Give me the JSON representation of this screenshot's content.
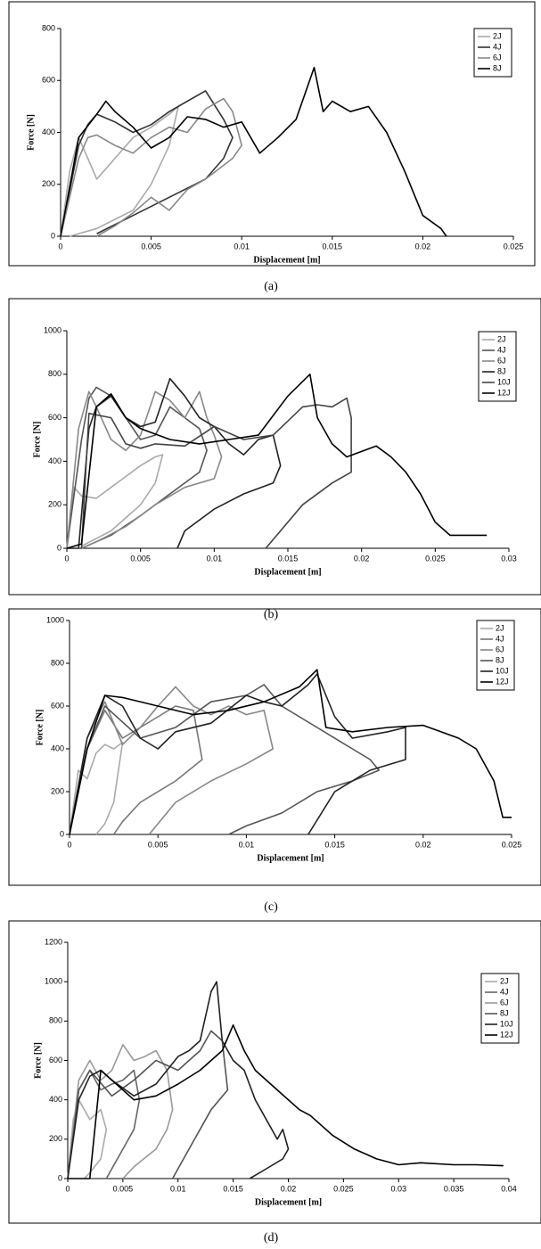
{
  "chart_data": [
    {
      "type": "line",
      "caption": "(a)",
      "x_label": "Displacement [m]",
      "y_label": "Force [N]",
      "xlim": [
        0,
        0.025
      ],
      "ylim": [
        0,
        800
      ],
      "xticks": [
        0,
        0.005,
        0.01,
        0.015,
        0.02,
        0.025
      ],
      "yticks": [
        0,
        200,
        400,
        600,
        800
      ],
      "series": [
        {
          "name": "2J",
          "color": "#aaaaaa",
          "x": [
            0,
            0.0005,
            0.001,
            0.0015,
            0.002,
            0.003,
            0.004,
            0.005,
            0.006,
            0.0065,
            0.006,
            0.005,
            0.004,
            0.002,
            0.0005
          ],
          "values": [
            0,
            250,
            380,
            300,
            220,
            300,
            380,
            420,
            470,
            500,
            350,
            200,
            100,
            30,
            0
          ]
        },
        {
          "name": "4J",
          "color": "#333333",
          "x": [
            0,
            0.001,
            0.0015,
            0.002,
            0.003,
            0.004,
            0.005,
            0.006,
            0.007,
            0.008,
            0.009,
            0.0095,
            0.009,
            0.008,
            0.006,
            0.004,
            0.002
          ],
          "values": [
            0,
            350,
            430,
            470,
            440,
            400,
            430,
            480,
            520,
            560,
            450,
            380,
            300,
            220,
            150,
            80,
            10
          ]
        },
        {
          "name": "6J",
          "color": "#888888",
          "x": [
            0,
            0.001,
            0.0015,
            0.002,
            0.003,
            0.004,
            0.005,
            0.006,
            0.007,
            0.008,
            0.009,
            0.0095,
            0.01,
            0.0095,
            0.008,
            0.007,
            0.006,
            0.005,
            0.004,
            0.003,
            0.002
          ],
          "values": [
            0,
            300,
            380,
            390,
            350,
            320,
            380,
            420,
            400,
            490,
            530,
            480,
            350,
            300,
            220,
            180,
            100,
            150,
            90,
            40,
            0
          ]
        },
        {
          "name": "8J",
          "color": "#000000",
          "x": [
            0,
            0.001,
            0.002,
            0.0025,
            0.003,
            0.004,
            0.005,
            0.006,
            0.007,
            0.008,
            0.009,
            0.01,
            0.011,
            0.012,
            0.013,
            0.014,
            0.0145,
            0.015,
            0.016,
            0.017,
            0.018,
            0.019,
            0.02,
            0.021,
            0.0213
          ],
          "values": [
            0,
            380,
            470,
            520,
            480,
            420,
            340,
            380,
            460,
            450,
            420,
            440,
            320,
            380,
            450,
            650,
            480,
            520,
            480,
            500,
            400,
            250,
            80,
            30,
            0
          ]
        }
      ]
    },
    {
      "type": "line",
      "caption": "(b)",
      "x_label": "Displacement [m]",
      "y_label": "Force [N]",
      "xlim": [
        0,
        0.03
      ],
      "ylim": [
        0,
        1000
      ],
      "xticks": [
        0,
        0.005,
        0.01,
        0.015,
        0.02,
        0.025,
        0.03
      ],
      "yticks": [
        0,
        200,
        400,
        600,
        800,
        1000
      ],
      "series": [
        {
          "name": "2J",
          "color": "#aaaaaa",
          "x": [
            0,
            0.0005,
            0.001,
            0.002,
            0.003,
            0.004,
            0.005,
            0.006,
            0.0065,
            0.006,
            0.005,
            0.003,
            0.001
          ],
          "values": [
            0,
            280,
            240,
            230,
            280,
            330,
            380,
            420,
            430,
            300,
            200,
            80,
            10
          ]
        },
        {
          "name": "4J",
          "color": "#555555",
          "x": [
            0,
            0.001,
            0.0015,
            0.002,
            0.003,
            0.004,
            0.005,
            0.006,
            0.007,
            0.008,
            0.009,
            0.0095,
            0.009,
            0.007,
            0.005,
            0.003,
            0.001
          ],
          "values": [
            0,
            500,
            690,
            740,
            700,
            600,
            500,
            520,
            650,
            600,
            550,
            450,
            350,
            250,
            150,
            60,
            0
          ]
        },
        {
          "name": "6J",
          "color": "#888888",
          "x": [
            0,
            0.0008,
            0.0015,
            0.002,
            0.003,
            0.004,
            0.005,
            0.006,
            0.007,
            0.008,
            0.009,
            0.0095,
            0.01,
            0.0105,
            0.01,
            0.008,
            0.006,
            0.004,
            0.002,
            0.001
          ],
          "values": [
            0,
            550,
            720,
            650,
            500,
            450,
            520,
            720,
            680,
            600,
            720,
            600,
            520,
            420,
            320,
            280,
            200,
            100,
            30,
            0
          ]
        },
        {
          "name": "8J",
          "color": "#222222",
          "x": [
            0,
            0.0008,
            0.0015,
            0.002,
            0.003,
            0.004,
            0.005,
            0.006,
            0.007,
            0.008,
            0.009,
            0.01,
            0.011,
            0.012,
            0.013,
            0.014,
            0.0145,
            0.014,
            0.012,
            0.01,
            0.008,
            0.0075
          ],
          "values": [
            0,
            0,
            550,
            650,
            700,
            600,
            560,
            580,
            780,
            700,
            600,
            560,
            480,
            430,
            500,
            520,
            380,
            300,
            250,
            180,
            80,
            0
          ]
        },
        {
          "name": "10J",
          "color": "#444444",
          "x": [
            0,
            0.001,
            0.0015,
            0.003,
            0.004,
            0.005,
            0.006,
            0.008,
            0.01,
            0.012,
            0.014,
            0.016,
            0.017,
            0.018,
            0.019,
            0.0193,
            0.0193,
            0.018,
            0.016,
            0.0135
          ],
          "values": [
            0,
            0,
            620,
            600,
            480,
            460,
            480,
            470,
            560,
            500,
            520,
            650,
            660,
            650,
            690,
            600,
            350,
            300,
            200,
            0
          ]
        },
        {
          "name": "12J",
          "color": "#000000",
          "x": [
            0,
            0.001,
            0.002,
            0.003,
            0.004,
            0.005,
            0.007,
            0.009,
            0.011,
            0.013,
            0.015,
            0.0165,
            0.017,
            0.018,
            0.019,
            0.021,
            0.022,
            0.023,
            0.024,
            0.025,
            0.026,
            0.0285
          ],
          "values": [
            0,
            20,
            650,
            710,
            600,
            550,
            500,
            480,
            500,
            520,
            700,
            800,
            600,
            480,
            420,
            470,
            420,
            350,
            250,
            120,
            60,
            60
          ]
        }
      ]
    },
    {
      "type": "line",
      "caption": "(c)",
      "x_label": "Displacement [m]",
      "y_label": "Force [N]",
      "xlim": [
        0,
        0.025
      ],
      "ylim": [
        0,
        1000
      ],
      "xticks": [
        0,
        0.005,
        0.01,
        0.015,
        0.02,
        0.025
      ],
      "yticks": [
        0,
        200,
        400,
        600,
        800,
        1000
      ],
      "series": [
        {
          "name": "2J",
          "color": "#aaaaaa",
          "x": [
            0,
            0.0005,
            0.001,
            0.0015,
            0.002,
            0.0025,
            0.003,
            0.0025,
            0.002,
            0.0015
          ],
          "values": [
            0,
            300,
            260,
            380,
            420,
            400,
            430,
            150,
            50,
            0
          ]
        },
        {
          "name": "4J",
          "color": "#777777",
          "x": [
            0,
            0.001,
            0.002,
            0.003,
            0.004,
            0.005,
            0.006,
            0.007,
            0.0075,
            0.006,
            0.004,
            0.003,
            0.0025
          ],
          "values": [
            0,
            400,
            580,
            450,
            500,
            550,
            600,
            580,
            350,
            250,
            150,
            60,
            0
          ]
        },
        {
          "name": "6J",
          "color": "#888888",
          "x": [
            0,
            0.001,
            0.002,
            0.003,
            0.004,
            0.005,
            0.006,
            0.007,
            0.008,
            0.009,
            0.01,
            0.011,
            0.0115,
            0.01,
            0.008,
            0.006,
            0.005,
            0.0045
          ],
          "values": [
            0,
            450,
            620,
            420,
            500,
            600,
            690,
            600,
            560,
            600,
            560,
            580,
            400,
            330,
            250,
            150,
            50,
            0
          ]
        },
        {
          "name": "8J",
          "color": "#555555",
          "x": [
            0,
            0.001,
            0.002,
            0.004,
            0.006,
            0.008,
            0.01,
            0.011,
            0.012,
            0.014,
            0.016,
            0.017,
            0.0175,
            0.016,
            0.014,
            0.012,
            0.01,
            0.009
          ],
          "values": [
            0,
            400,
            600,
            450,
            500,
            620,
            650,
            700,
            600,
            500,
            400,
            350,
            300,
            250,
            200,
            100,
            40,
            0
          ]
        },
        {
          "name": "10J",
          "color": "#222222",
          "x": [
            0,
            0.001,
            0.002,
            0.003,
            0.004,
            0.005,
            0.006,
            0.008,
            0.01,
            0.011,
            0.012,
            0.0135,
            0.014,
            0.015,
            0.016,
            0.018,
            0.019,
            0.019,
            0.017,
            0.015,
            0.0135
          ],
          "values": [
            0,
            450,
            650,
            600,
            450,
            400,
            480,
            520,
            650,
            620,
            600,
            700,
            750,
            550,
            450,
            480,
            500,
            350,
            300,
            200,
            0
          ]
        },
        {
          "name": "12J",
          "color": "#000000",
          "x": [
            0,
            0.001,
            0.002,
            0.003,
            0.005,
            0.007,
            0.009,
            0.011,
            0.013,
            0.014,
            0.0145,
            0.016,
            0.018,
            0.02,
            0.021,
            0.022,
            0.023,
            0.024,
            0.0245,
            0.025
          ],
          "values": [
            0,
            400,
            650,
            640,
            600,
            560,
            580,
            620,
            690,
            770,
            500,
            480,
            500,
            510,
            480,
            450,
            400,
            250,
            80,
            80
          ]
        }
      ]
    },
    {
      "type": "line",
      "caption": "(d)",
      "x_label": "Displacement [m]",
      "y_label": "Force [N]",
      "xlim": [
        0,
        0.04
      ],
      "ylim": [
        0,
        1200
      ],
      "xticks": [
        0,
        0.005,
        0.01,
        0.015,
        0.02,
        0.025,
        0.03,
        0.035,
        0.04
      ],
      "yticks": [
        0,
        200,
        400,
        600,
        800,
        1000,
        1200
      ],
      "series": [
        {
          "name": "2J",
          "color": "#aaaaaa",
          "x": [
            0,
            0.0005,
            0.001,
            0.002,
            0.003,
            0.0035,
            0.003,
            0.002,
            0.0015
          ],
          "values": [
            0,
            300,
            400,
            300,
            350,
            250,
            100,
            30,
            0
          ]
        },
        {
          "name": "4J",
          "color": "#666666",
          "x": [
            0,
            0.001,
            0.002,
            0.003,
            0.004,
            0.005,
            0.006,
            0.0065,
            0.006,
            0.005,
            0.004,
            0.0035
          ],
          "values": [
            0,
            450,
            550,
            450,
            480,
            500,
            550,
            400,
            250,
            150,
            50,
            0
          ]
        },
        {
          "name": "6J",
          "color": "#999999",
          "x": [
            0,
            0.001,
            0.002,
            0.003,
            0.004,
            0.005,
            0.006,
            0.007,
            0.008,
            0.009,
            0.0095,
            0.009,
            0.008,
            0.006,
            0.005
          ],
          "values": [
            0,
            500,
            600,
            500,
            550,
            680,
            600,
            620,
            650,
            550,
            350,
            250,
            150,
            60,
            0
          ]
        },
        {
          "name": "8J",
          "color": "#555555",
          "x": [
            0,
            0.001,
            0.002,
            0.004,
            0.006,
            0.008,
            0.01,
            0.012,
            0.013,
            0.014,
            0.0145,
            0.013,
            0.012,
            0.011,
            0.0095
          ],
          "values": [
            0,
            450,
            550,
            420,
            500,
            600,
            550,
            650,
            750,
            700,
            450,
            350,
            250,
            150,
            0
          ]
        },
        {
          "name": "10J",
          "color": "#222222",
          "x": [
            0,
            0.001,
            0.002,
            0.003,
            0.004,
            0.006,
            0.008,
            0.01,
            0.011,
            0.012,
            0.013,
            0.0135,
            0.014,
            0.015,
            0.016,
            0.017,
            0.018,
            0.019,
            0.0195,
            0.02,
            0.0195,
            0.018,
            0.0165
          ],
          "values": [
            0,
            400,
            520,
            550,
            500,
            420,
            480,
            620,
            650,
            700,
            950,
            1000,
            700,
            600,
            550,
            400,
            300,
            200,
            250,
            150,
            100,
            50,
            0
          ]
        },
        {
          "name": "12J",
          "color": "#000000",
          "x": [
            0,
            0.002,
            0.003,
            0.004,
            0.006,
            0.008,
            0.01,
            0.012,
            0.014,
            0.015,
            0.016,
            0.017,
            0.019,
            0.021,
            0.022,
            0.024,
            0.026,
            0.028,
            0.03,
            0.032,
            0.035,
            0.037,
            0.0395
          ],
          "values": [
            0,
            0,
            550,
            500,
            400,
            420,
            480,
            550,
            650,
            780,
            650,
            550,
            450,
            350,
            320,
            220,
            150,
            100,
            70,
            80,
            70,
            70,
            65
          ]
        }
      ]
    }
  ]
}
